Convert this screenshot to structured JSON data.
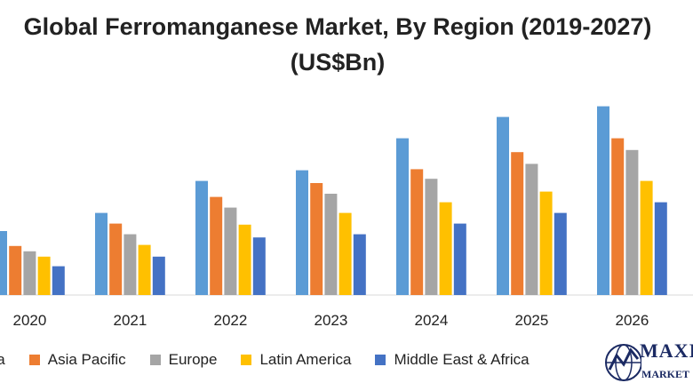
{
  "chart_data": {
    "type": "bar",
    "title": "Global Ferromanganese Market, By Region (2019-2027)(US$Bn)",
    "categories": [
      "2020",
      "2021",
      "2022",
      "2023",
      "2024",
      "2025",
      "2026"
    ],
    "series": [
      {
        "name": "North America",
        "color": "#5b9bd5",
        "values": [
          6,
          7.7,
          10.7,
          11.7,
          14.7,
          16.7,
          17.7
        ]
      },
      {
        "name": "Asia Pacific",
        "color": "#ed7d31",
        "values": [
          4.6,
          6.7,
          9.2,
          10.5,
          11.8,
          13.4,
          14.7
        ]
      },
      {
        "name": "Europe",
        "color": "#a5a5a5",
        "values": [
          4.1,
          5.7,
          8.2,
          9.5,
          10.9,
          12.3,
          13.6
        ]
      },
      {
        "name": "Latin America",
        "color": "#ffc000",
        "values": [
          3.6,
          4.7,
          6.6,
          7.7,
          8.7,
          9.7,
          10.7
        ]
      },
      {
        "name": "Middle East & Africa",
        "color": "#4472c4",
        "values": [
          2.7,
          3.6,
          5.4,
          5.7,
          6.7,
          7.7,
          8.7
        ]
      }
    ],
    "legend_labels": [
      "ica",
      "Asia Pacific",
      "Europe",
      "Latin America",
      "Middle East & Africa"
    ],
    "ylim": [
      0,
      20
    ],
    "grid": false,
    "legend_position": "bottom"
  },
  "logo": {
    "wordmark": "MAXI",
    "subtext": "MARKET",
    "colors": {
      "navy": "#1b2a63"
    }
  }
}
